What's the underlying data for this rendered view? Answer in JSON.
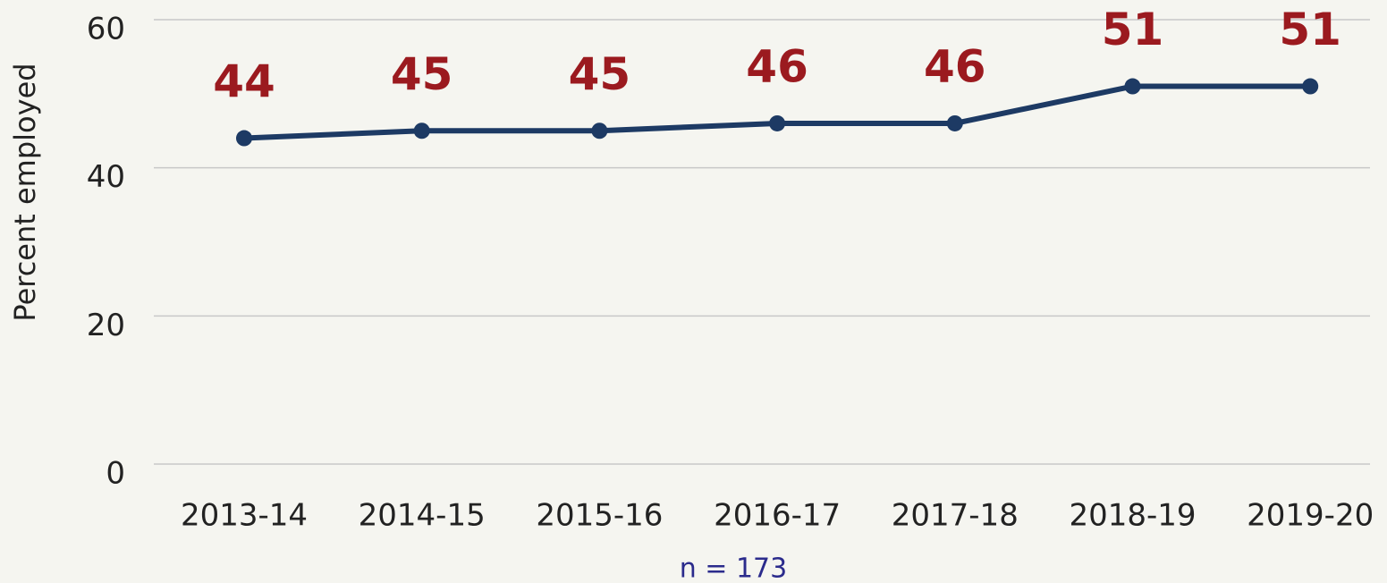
{
  "chart_data": {
    "type": "line",
    "categories": [
      "2013-14",
      "2014-15",
      "2015-16",
      "2016-17",
      "2017-18",
      "2018-19",
      "2019-20"
    ],
    "values": [
      44,
      45,
      45,
      46,
      46,
      51,
      51
    ],
    "color": "#1d3a64",
    "label_color": "#9b1a1f",
    "y_label": "Percent employed",
    "note": "n = 173",
    "ylim": [
      0,
      60
    ],
    "yticks": [
      0,
      20,
      40,
      60
    ],
    "grid": true
  }
}
